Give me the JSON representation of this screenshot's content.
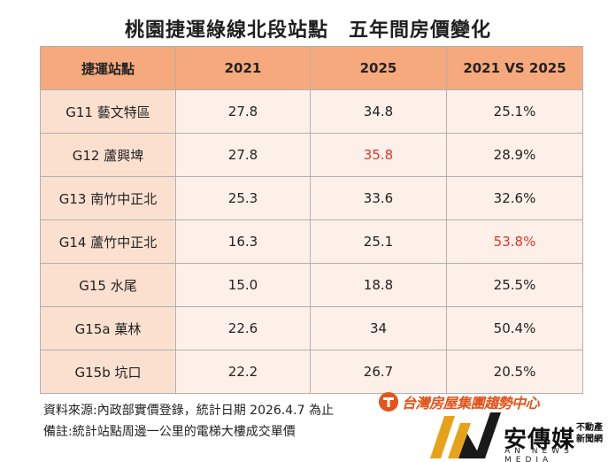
{
  "title": "桃園捷運綠線北段站點　五年間房價變化",
  "table": {
    "headers": [
      "捷運站點",
      "2021",
      "2025",
      "2021 VS 2025"
    ],
    "rows": [
      {
        "station": "G11 藝文特區",
        "y2021": "27.8",
        "y2025": "34.8",
        "change": "25.1%"
      },
      {
        "station": "G12 蘆興埤",
        "y2021": "27.8",
        "y2025": "35.8",
        "change": "28.9%"
      },
      {
        "station": "G13 南竹中正北",
        "y2021": "25.3",
        "y2025": "33.6",
        "change": "32.6%"
      },
      {
        "station": "G14 蘆竹中正北",
        "y2021": "16.3",
        "y2025": "25.1",
        "change": "53.8%"
      },
      {
        "station": "G15 水尾",
        "y2021": "15.0",
        "y2025": "18.8",
        "change": "25.5%"
      },
      {
        "station": "G15a 菓林",
        "y2021": "22.6",
        "y2025": "34",
        "change": "50.4%"
      },
      {
        "station": "G15b 坑口",
        "y2021": "22.2",
        "y2025": "26.7",
        "change": "20.5%"
      }
    ],
    "highlight_color": "#e0362c"
  },
  "source": "資料來源:內政部實價登錄，統計日期 2026.4.7 為止",
  "note": "備註:統計站點周邊一公里的電梯大樓成交單價",
  "brand_text": "台灣房屋集團趨勢中心",
  "logo": {
    "name": "安傳媒",
    "tag1": "不動產",
    "tag2": "新聞網",
    "english": "AN NEWS MEDIA"
  },
  "colors": {
    "header": "#f5a97d",
    "cell": "#fdf0e8",
    "brand_orange": "#e2541b",
    "logo_gold": "#e8a21a"
  }
}
